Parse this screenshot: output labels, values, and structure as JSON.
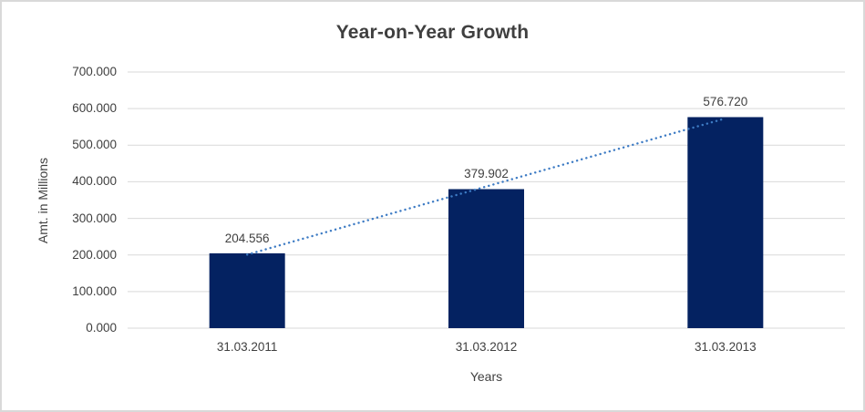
{
  "chart_data": {
    "type": "bar",
    "title": "Year-on-Year Growth",
    "xlabel": "Years",
    "ylabel": "Amt. in Millions",
    "categories": [
      "31.03.2011",
      "31.03.2012",
      "31.03.2013"
    ],
    "values": [
      204.556,
      379.902,
      576.72
    ],
    "data_labels": [
      "204.556",
      "379.902",
      "576.720"
    ],
    "ytick_labels": [
      "0.000",
      "100.000",
      "200.000",
      "300.000",
      "400.000",
      "500.000",
      "600.000",
      "700.000"
    ],
    "ylim": [
      0,
      700
    ],
    "ytick_step": 100,
    "grid": true,
    "legend": "none",
    "trendline": {
      "type": "linear",
      "style": "dotted"
    },
    "colors": {
      "bar": "#042261",
      "trendline": "#3D7BC4",
      "gridline": "#D9D9D9",
      "axis_line": "#D9D9D9",
      "text": "#404040",
      "title": "#3F3F3F",
      "border": "#D9D9D9",
      "background": "#FFFFFF"
    }
  }
}
